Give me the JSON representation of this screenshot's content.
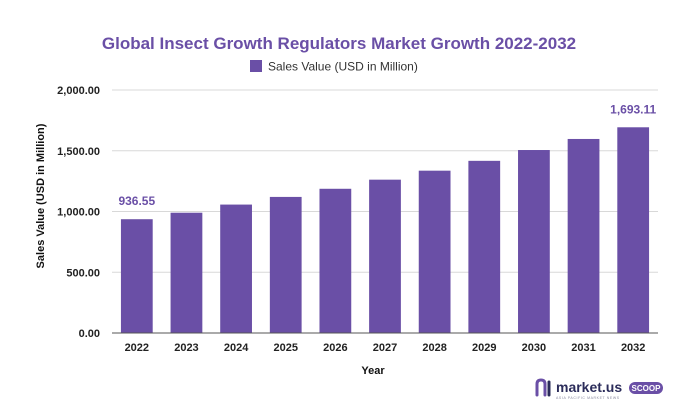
{
  "chart_data": {
    "type": "bar",
    "title": "Global Insect Growth Regulators Market Growth 2022-2032",
    "xlabel": "Year",
    "ylabel": "Sales Value (USD in Million)",
    "categories": [
      "2022",
      "2023",
      "2024",
      "2025",
      "2026",
      "2027",
      "2028",
      "2029",
      "2030",
      "2031",
      "2032"
    ],
    "series": [
      {
        "name": "Sales Value (USD in Million)",
        "values": [
          936.55,
          990,
          1057,
          1120,
          1187,
          1262,
          1336,
          1417,
          1506,
          1597,
          1693.11
        ]
      }
    ],
    "ylim": [
      0,
      2000
    ],
    "yticks": [
      "0.00",
      "500.00",
      "1,000.00",
      "1,500.00",
      "2,000.00"
    ],
    "data_labels": [
      {
        "category": "2022",
        "text": "936.55"
      },
      {
        "category": "2032",
        "text": "1,693.11"
      }
    ],
    "grid": true,
    "legend_position": "top-center",
    "colors": {
      "bar": "#6a4fa6",
      "title": "#6a4fa6",
      "grid": "#d8d8d8",
      "axis": "#555555"
    }
  },
  "brand": {
    "name": "market.us",
    "tagline": "ASIA PACIFIC MARKET NEWS",
    "badge": "SCOOP",
    "colors": {
      "primary": "#2b2c5a",
      "accent": "#6a4fa6"
    }
  }
}
